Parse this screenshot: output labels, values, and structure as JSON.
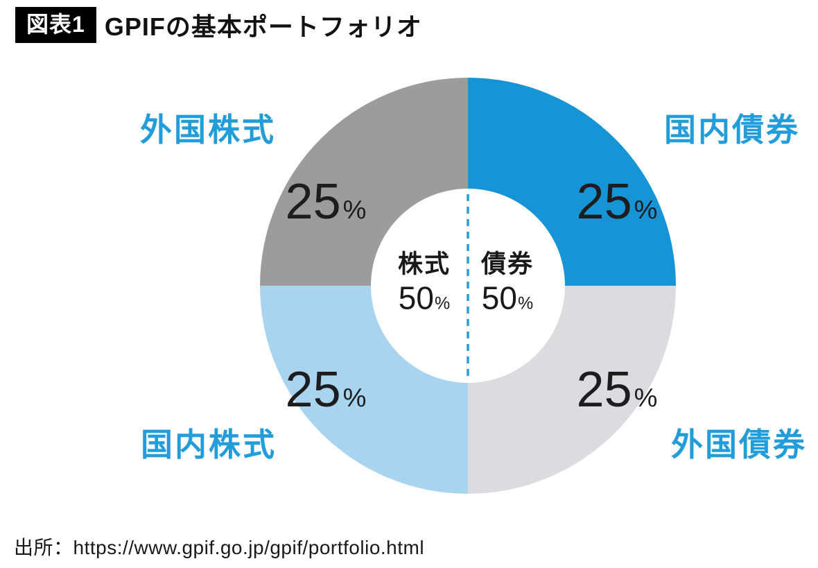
{
  "header": {
    "badge": "図表1",
    "title": "GPIFの基本ポートフォリオ"
  },
  "colors": {
    "accent_blue": "#239dd9",
    "text_dark": "#1d1d1f",
    "domestic_bonds": "#1694d6",
    "foreign_bonds": "#dbdce0",
    "domestic_stocks": "#a9d4f0",
    "foreign_stocks": "#9c9c9d"
  },
  "chart_data": {
    "type": "pie",
    "donut": true,
    "title": "GPIFの基本ポートフォリオ",
    "unit": "%",
    "segments": [
      {
        "id": "domestic-bonds",
        "label": "国内債券",
        "value": 25,
        "color": "#1694d6",
        "position": "top-right"
      },
      {
        "id": "foreign-bonds",
        "label": "外国債券",
        "value": 25,
        "color": "#dbdce0",
        "position": "bottom-right"
      },
      {
        "id": "domestic-stocks",
        "label": "国内株式",
        "value": 25,
        "color": "#a9d4f0",
        "position": "bottom-left"
      },
      {
        "id": "foreign-stocks",
        "label": "外国株式",
        "value": 25,
        "color": "#9c9c9d",
        "position": "top-left"
      }
    ],
    "center_groups": [
      {
        "id": "stocks",
        "label": "株式",
        "value": 50
      },
      {
        "id": "bonds",
        "label": "債券",
        "value": 50
      }
    ],
    "legend_position": "around",
    "source": "出所：https://www.gpif.go.jp/gpif/portfolio.html"
  }
}
